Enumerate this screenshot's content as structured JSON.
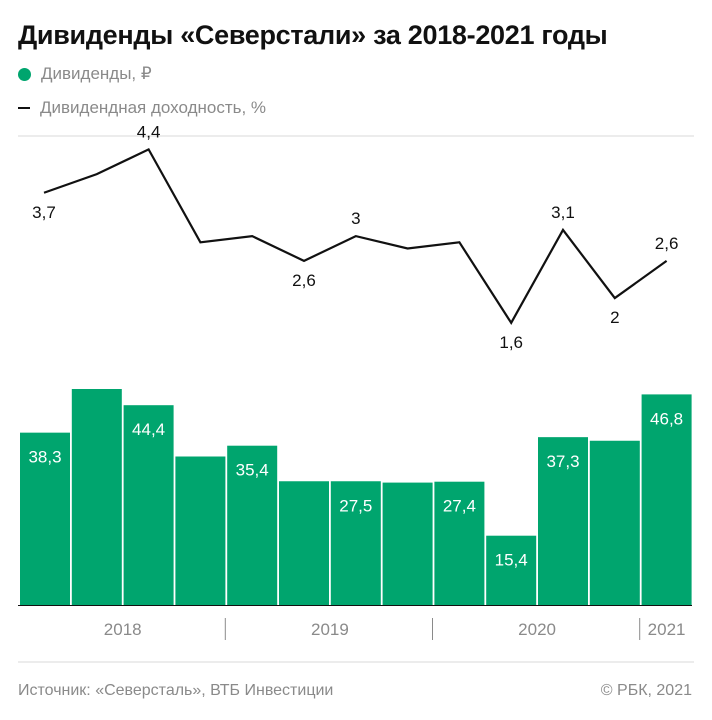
{
  "title": "Дивиденды «Северстали» за 2018-2021 годы",
  "legend": {
    "dividends": "Дивиденды, ₽",
    "yield": "Дивидендная доходность, %"
  },
  "colors": {
    "bar": "#00a56e",
    "line": "#111111",
    "bar_label": "#ffffff",
    "grid": "#d9d9d9",
    "muted_text": "#8a8a8a"
  },
  "footer": {
    "source": "Источник: «Северсталь», ВТБ Инвестиции",
    "copyright": "© РБК, 2021"
  },
  "chart_data": [
    {
      "type": "line",
      "series": [
        {
          "name": "Дивидендная доходность, %",
          "values": [
            3.7,
            4.0,
            4.4,
            2.9,
            3.0,
            2.6,
            3.0,
            2.8,
            2.9,
            1.6,
            3.1,
            2.0,
            2.6
          ],
          "labels": [
            "3,7",
            "",
            "4,4",
            "",
            "",
            "2,6",
            "3",
            "",
            "",
            "1,6",
            "3,1",
            "2",
            "2,6"
          ]
        }
      ],
      "ylim": [
        1.0,
        4.6
      ]
    },
    {
      "type": "bar",
      "series": [
        {
          "name": "Дивиденды, ₽",
          "values": [
            38.3,
            48.0,
            44.4,
            33.0,
            35.4,
            27.5,
            27.5,
            27.2,
            27.4,
            15.4,
            37.3,
            36.5,
            46.8
          ],
          "labels": [
            "38,3",
            "",
            "44,4",
            "",
            "35,4",
            "",
            "27,5",
            "",
            "27,4",
            "15,4",
            "37,3",
            "",
            "46,8"
          ]
        }
      ],
      "ylim": [
        0,
        50
      ],
      "year_groups": [
        {
          "label": "2018",
          "count": 4
        },
        {
          "label": "2019",
          "count": 4
        },
        {
          "label": "2020",
          "count": 4
        },
        {
          "label": "2021",
          "count": 1
        }
      ]
    }
  ]
}
